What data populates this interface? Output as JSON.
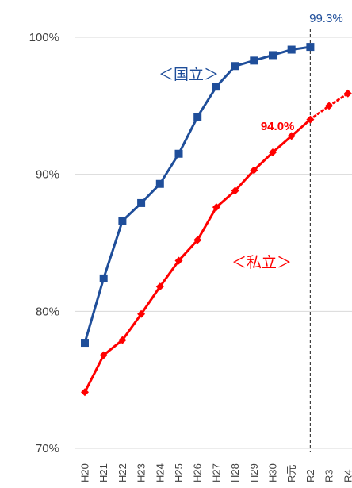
{
  "chart_data": {
    "type": "line",
    "categories": [
      "H20",
      "H21",
      "H22",
      "H23",
      "H24",
      "H25",
      "H26",
      "H27",
      "H28",
      "H29",
      "H30",
      "R元",
      "R2",
      "R3",
      "R4"
    ],
    "ylim": [
      70,
      100
    ],
    "yticks": [
      {
        "value": 70,
        "label": "70%"
      },
      {
        "value": 80,
        "label": "80%"
      },
      {
        "value": 90,
        "label": "90%"
      },
      {
        "value": 100,
        "label": "100%"
      }
    ],
    "grid": true,
    "reference_line_at": "R2",
    "series": [
      {
        "name": "＜国立＞",
        "color": "#1f4e9a",
        "marker": "square",
        "values": [
          77.7,
          82.4,
          86.6,
          87.9,
          89.3,
          91.5,
          94.2,
          96.4,
          97.9,
          98.3,
          98.7,
          99.1,
          99.3,
          null,
          null
        ]
      },
      {
        "name": "＜私立＞",
        "color": "#ff0000",
        "marker": "diamond",
        "dotted_after": "R2",
        "values": [
          74.1,
          76.8,
          77.9,
          79.8,
          81.8,
          83.7,
          85.2,
          87.6,
          88.8,
          90.3,
          91.6,
          92.8,
          94.0,
          95.0,
          95.9
        ]
      }
    ],
    "annotations": [
      {
        "text": "99.3%",
        "color": "#1f4e9a"
      },
      {
        "text": "94.0%",
        "color": "#ff0000"
      }
    ]
  }
}
